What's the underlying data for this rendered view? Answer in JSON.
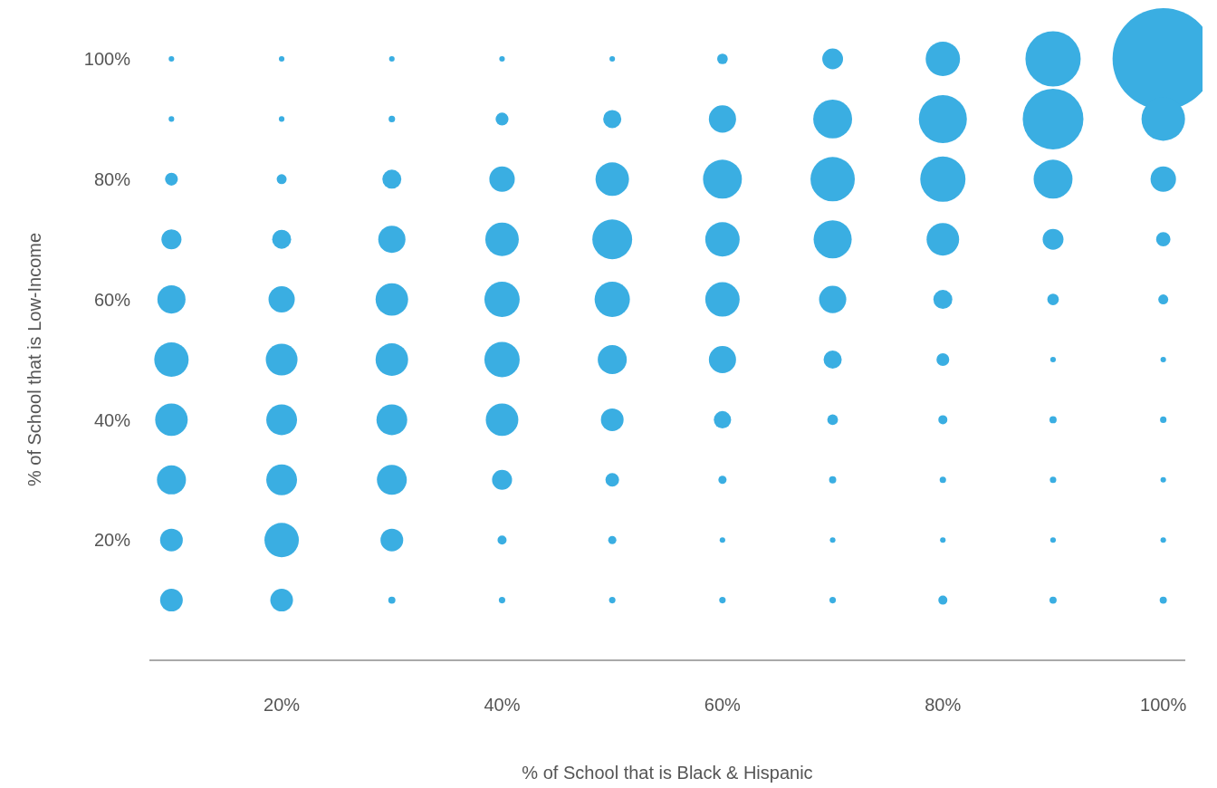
{
  "chart_data": {
    "type": "bubble",
    "xlabel": "% of School that is Black & Hispanic",
    "ylabel": "% of School that is Low-Income",
    "x": [
      10,
      20,
      30,
      40,
      50,
      60,
      70,
      80,
      90,
      100,
      10,
      20,
      30,
      40,
      50,
      60,
      70,
      80,
      90,
      100,
      10,
      20,
      30,
      40,
      50,
      60,
      70,
      80,
      90,
      100,
      10,
      20,
      30,
      40,
      50,
      60,
      70,
      80,
      90,
      100,
      10,
      20,
      30,
      40,
      50,
      60,
      70,
      80,
      90,
      100,
      10,
      20,
      30,
      40,
      50,
      60,
      70,
      80,
      90,
      100,
      10,
      20,
      30,
      40,
      50,
      60,
      70,
      80,
      90,
      100,
      10,
      20,
      30,
      40,
      50,
      60,
      70,
      80,
      90,
      100,
      10,
      20,
      30,
      40,
      50,
      60,
      70,
      80,
      90,
      100,
      10,
      20,
      30,
      40,
      50,
      60,
      70,
      80,
      90,
      100
    ],
    "values": [
      100,
      100,
      100,
      100,
      100,
      100,
      100,
      100,
      100,
      100,
      90,
      90,
      90,
      90,
      90,
      90,
      90,
      90,
      90,
      90,
      80,
      80,
      80,
      80,
      80,
      80,
      80,
      80,
      80,
      80,
      70,
      70,
      70,
      70,
      70,
      70,
      70,
      70,
      70,
      70,
      60,
      60,
      60,
      60,
      60,
      60,
      60,
      60,
      60,
      60,
      50,
      50,
      50,
      50,
      50,
      50,
      50,
      50,
      50,
      50,
      40,
      40,
      40,
      40,
      40,
      40,
      40,
      40,
      40,
      40,
      30,
      30,
      30,
      30,
      30,
      30,
      30,
      30,
      30,
      30,
      20,
      20,
      20,
      20,
      20,
      20,
      20,
      20,
      20,
      20,
      10,
      10,
      10,
      10,
      10,
      10,
      10,
      10,
      10,
      10
    ],
    "sizes": [
      0.003,
      0.003,
      0.003,
      0.003,
      0.003,
      0.011,
      0.042,
      0.115,
      0.297,
      1,
      0.003,
      0.003,
      0.004,
      0.016,
      0.032,
      0.072,
      0.147,
      0.224,
      0.358,
      0.184,
      0.016,
      0.0096,
      0.035,
      0.063,
      0.109,
      0.147,
      0.191,
      0.199,
      0.147,
      0.063,
      0.039,
      0.035,
      0.072,
      0.109,
      0.154,
      0.115,
      0.141,
      0.103,
      0.042,
      0.02,
      0.077,
      0.067,
      0.103,
      0.121,
      0.121,
      0.115,
      0.072,
      0.035,
      0.013,
      0.0096,
      0.115,
      0.098,
      0.103,
      0.121,
      0.082,
      0.072,
      0.032,
      0.016,
      0.003,
      0.003,
      0.103,
      0.092,
      0.092,
      0.103,
      0.05,
      0.029,
      0.011,
      0.008,
      0.005,
      0.004,
      0.082,
      0.092,
      0.087,
      0.039,
      0.018,
      0.0065,
      0.005,
      0.004,
      0.004,
      0.003,
      0.05,
      0.115,
      0.05,
      0.008,
      0.0065,
      0.003,
      0.003,
      0.003,
      0.003,
      0.003,
      0.05,
      0.05,
      0.005,
      0.004,
      0.004,
      0.004,
      0.004,
      0.008,
      0.005,
      0.005
    ],
    "color": "#3aaee2",
    "xlim": [
      8,
      102
    ],
    "ylim": [
      0,
      100
    ],
    "xticks": [
      {
        "value": 20,
        "label": "20%"
      },
      {
        "value": 40,
        "label": "40%"
      },
      {
        "value": 60,
        "label": "60%"
      },
      {
        "value": 80,
        "label": "80%"
      },
      {
        "value": 100,
        "label": "100%"
      }
    ],
    "yticks": [
      {
        "value": 20,
        "label": "20%"
      },
      {
        "value": 40,
        "label": "40%"
      },
      {
        "value": 60,
        "label": "60%"
      },
      {
        "value": 80,
        "label": "80%"
      },
      {
        "value": 100,
        "label": "100%"
      }
    ],
    "grid": false,
    "legend": false
  }
}
